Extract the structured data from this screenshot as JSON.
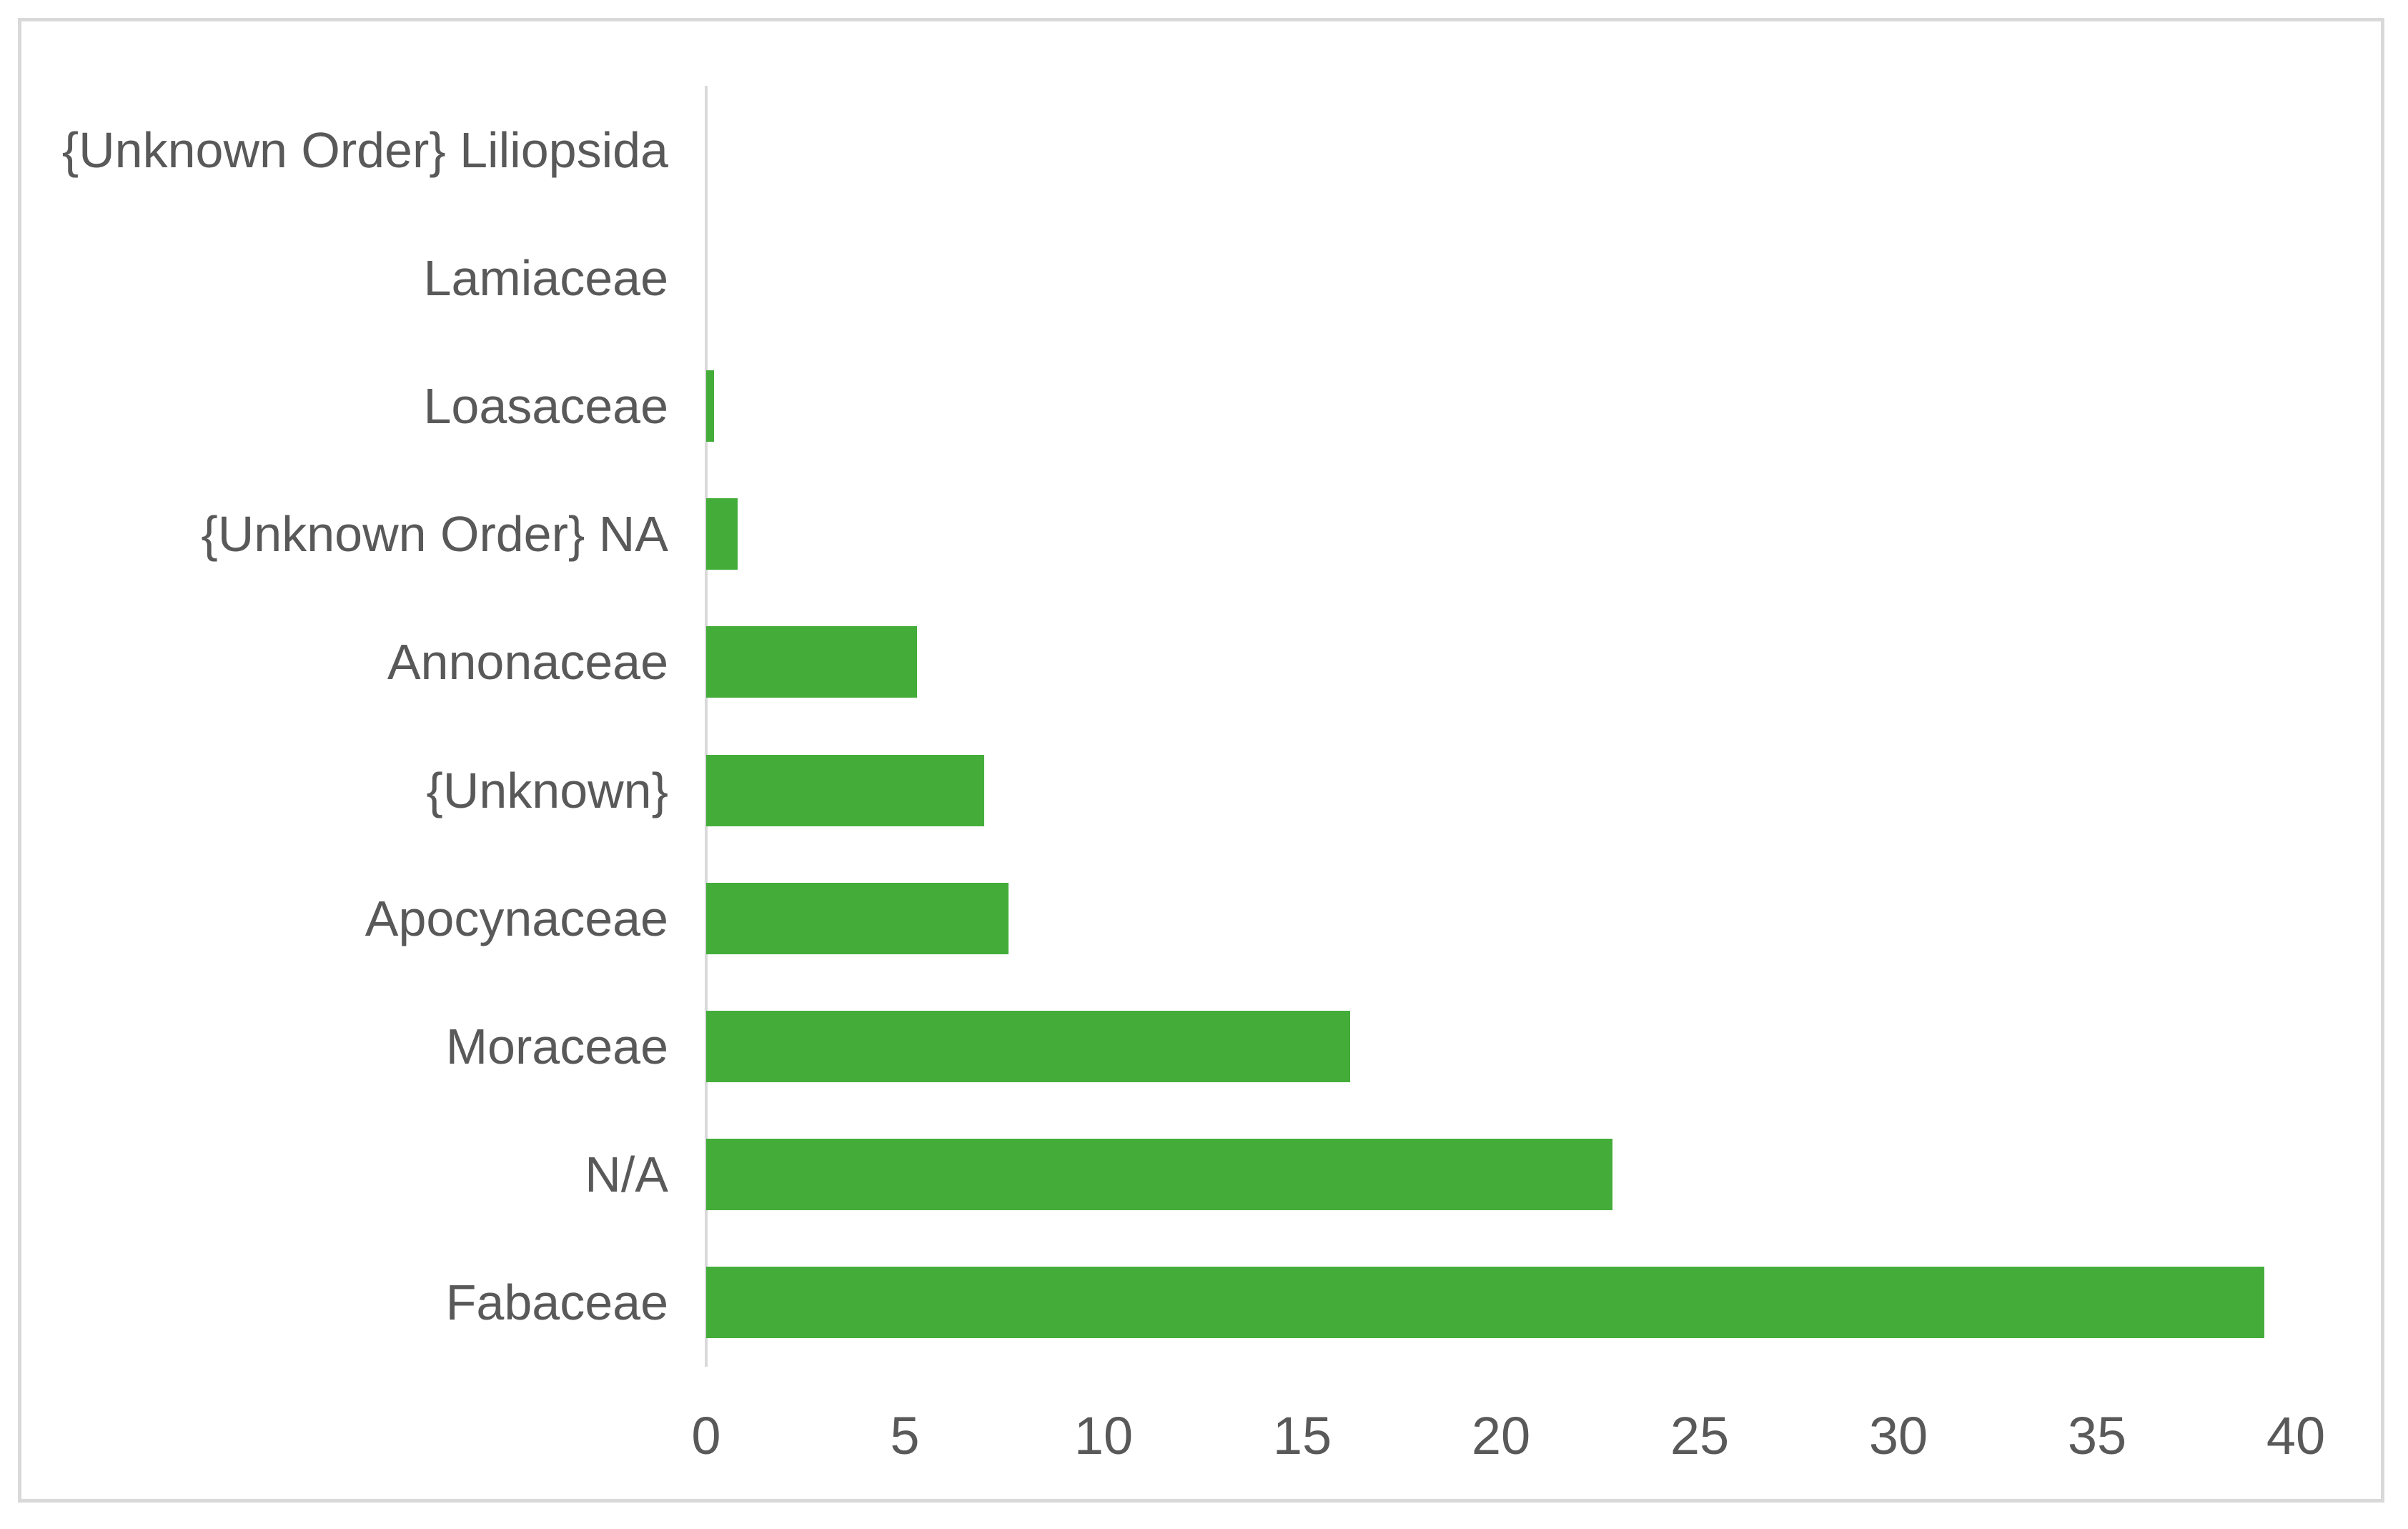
{
  "chart_data": {
    "type": "bar",
    "orientation": "horizontal",
    "title": "",
    "xlabel": "",
    "ylabel": "",
    "categories": [
      "{Unknown Order} Liliopsida",
      "Lamiaceae",
      "Loasaceae",
      "{Unknown Order} NA",
      "Annonaceae",
      "{Unknown}",
      "Apocynaceae",
      "Moraceae",
      "N/A",
      "Fabaceae"
    ],
    "values": [
      0,
      0,
      0.2,
      0.8,
      5.3,
      7.0,
      7.6,
      16.2,
      22.8,
      39.2
    ],
    "xlim": [
      0,
      40
    ],
    "x_ticks": [
      "0",
      "5",
      "10",
      "15",
      "20",
      "25",
      "30",
      "35",
      "40"
    ],
    "x_tick_values": [
      0,
      5,
      10,
      15,
      20,
      25,
      30,
      35,
      40
    ],
    "grid": false,
    "legend": false,
    "bar_color": "#44ad3a",
    "axis_line_color": "#d9d9d9",
    "frame_border_color": "#d9d9d9",
    "text_color": "#595959"
  }
}
